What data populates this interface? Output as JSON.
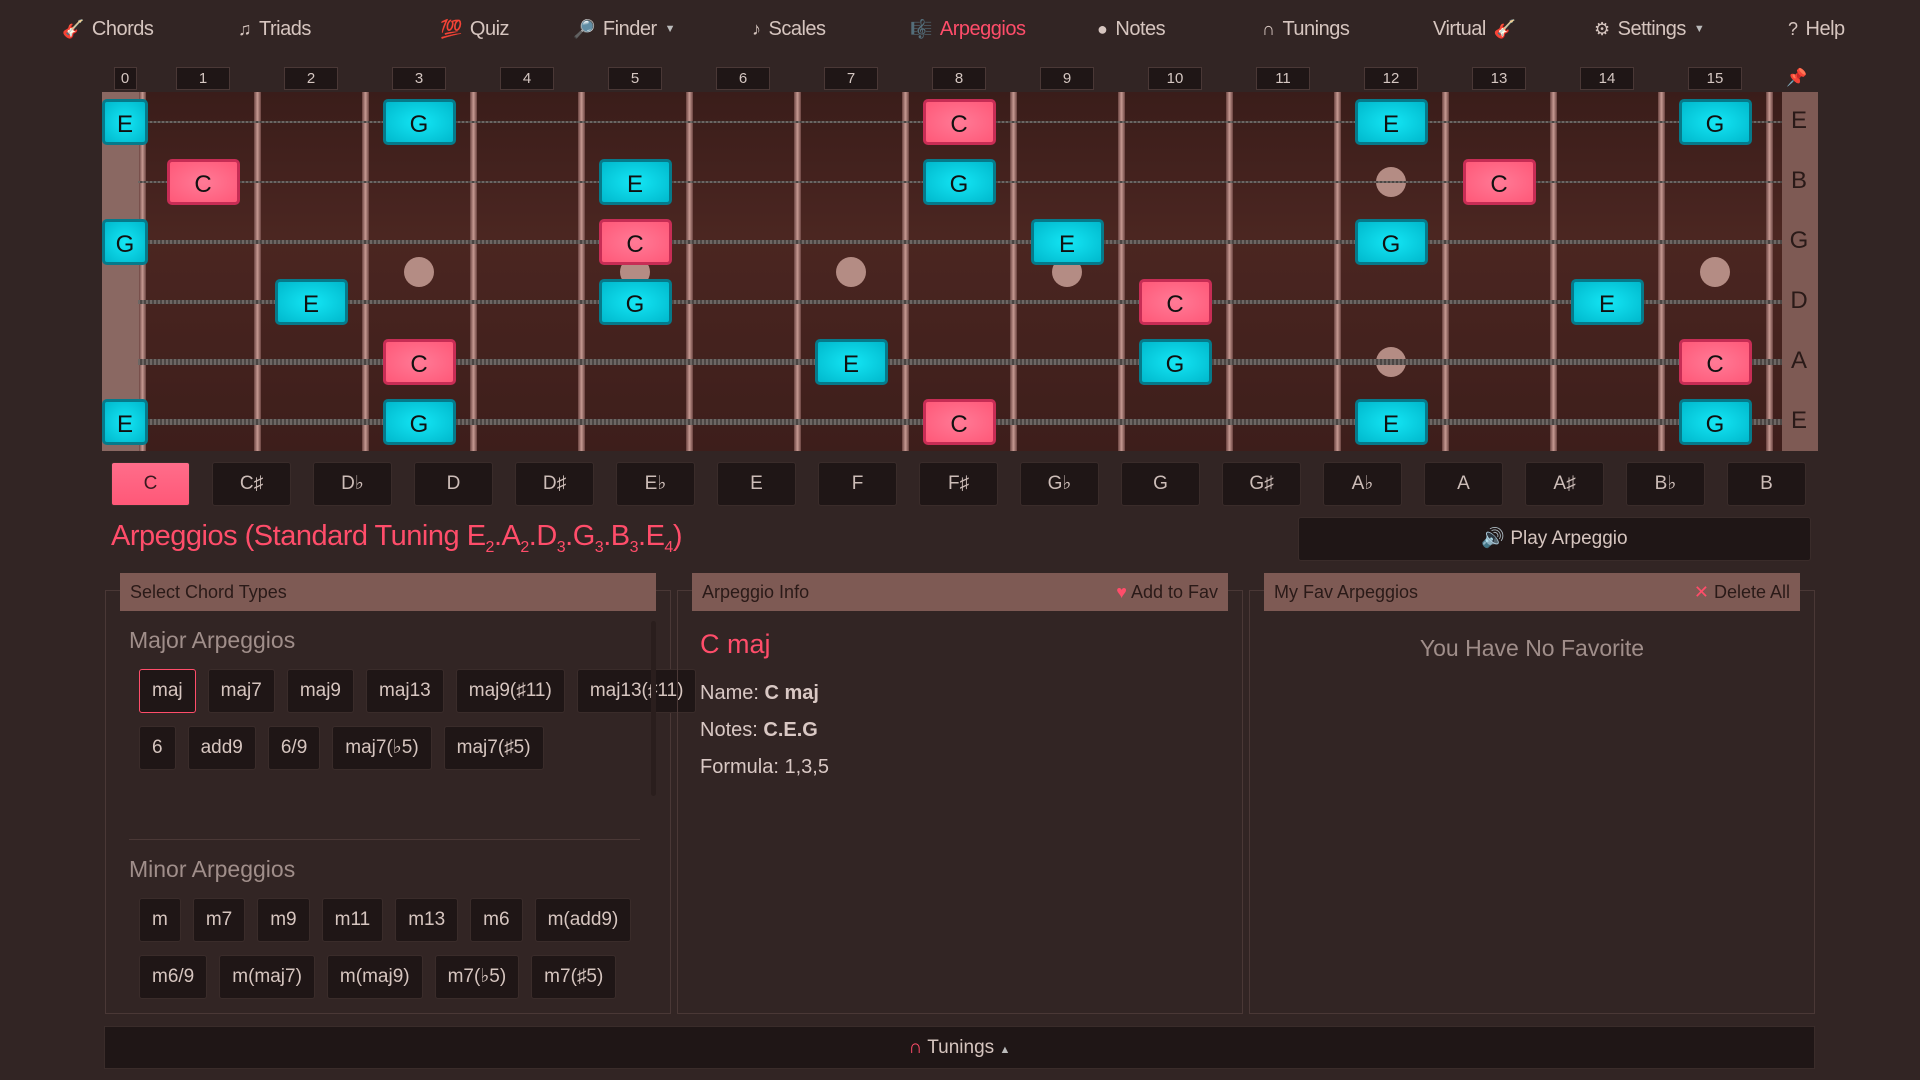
{
  "nav": [
    {
      "label": "Chords",
      "icon": "guitar-icon",
      "glyph": "🎸"
    },
    {
      "label": "Triads",
      "icon": "music-notes-icon",
      "glyph": "♫"
    },
    {
      "label": "Quiz",
      "icon": "hundred-icon",
      "glyph": "💯"
    },
    {
      "label": "Finder",
      "icon": "magnifier-icon",
      "glyph": "🔎",
      "dropdown": true
    },
    {
      "label": "Scales",
      "icon": "music-note-icon",
      "glyph": "♪"
    },
    {
      "label": "Arpeggios",
      "icon": "score-icon",
      "glyph": "🎼",
      "active": true
    },
    {
      "label": "Notes",
      "icon": "purple-circle-icon",
      "glyph": "●"
    },
    {
      "label": "Tunings",
      "icon": "magnet-icon",
      "glyph": "∩"
    },
    {
      "label": "Virtual",
      "icon": "guitar-icon",
      "glyph": "🎸",
      "icon_after": true
    },
    {
      "label": "Settings",
      "icon": "gear-icon",
      "glyph": "⚙",
      "dropdown": true
    },
    {
      "label": "Help",
      "icon": "question-icon",
      "glyph": "?"
    }
  ],
  "fretboard": {
    "fret_numbers": [
      "0",
      "1",
      "2",
      "3",
      "4",
      "5",
      "6",
      "7",
      "8",
      "9",
      "10",
      "11",
      "12",
      "13",
      "14",
      "15"
    ],
    "string_labels": [
      "E",
      "B",
      "G",
      "D",
      "A",
      "E"
    ],
    "pin_icon": "pushpin-icon",
    "inlays": [
      3,
      5,
      7,
      9,
      12,
      15
    ],
    "notes": [
      {
        "string": 0,
        "fret": 0,
        "note": "E"
      },
      {
        "string": 0,
        "fret": 3,
        "note": "G"
      },
      {
        "string": 0,
        "fret": 8,
        "note": "C"
      },
      {
        "string": 0,
        "fret": 12,
        "note": "E"
      },
      {
        "string": 0,
        "fret": 15,
        "note": "G"
      },
      {
        "string": 1,
        "fret": 1,
        "note": "C"
      },
      {
        "string": 1,
        "fret": 5,
        "note": "E"
      },
      {
        "string": 1,
        "fret": 8,
        "note": "G"
      },
      {
        "string": 1,
        "fret": 13,
        "note": "C"
      },
      {
        "string": 2,
        "fret": 0,
        "note": "G"
      },
      {
        "string": 2,
        "fret": 5,
        "note": "C"
      },
      {
        "string": 2,
        "fret": 9,
        "note": "E"
      },
      {
        "string": 2,
        "fret": 12,
        "note": "G"
      },
      {
        "string": 3,
        "fret": 2,
        "note": "E"
      },
      {
        "string": 3,
        "fret": 5,
        "note": "G"
      },
      {
        "string": 3,
        "fret": 10,
        "note": "C"
      },
      {
        "string": 3,
        "fret": 14,
        "note": "E"
      },
      {
        "string": 4,
        "fret": 3,
        "note": "C"
      },
      {
        "string": 4,
        "fret": 7,
        "note": "E"
      },
      {
        "string": 4,
        "fret": 10,
        "note": "G"
      },
      {
        "string": 4,
        "fret": 15,
        "note": "C"
      },
      {
        "string": 5,
        "fret": 0,
        "note": "E"
      },
      {
        "string": 5,
        "fret": 3,
        "note": "G"
      },
      {
        "string": 5,
        "fret": 8,
        "note": "C"
      },
      {
        "string": 5,
        "fret": 12,
        "note": "E"
      },
      {
        "string": 5,
        "fret": 15,
        "note": "G"
      }
    ],
    "root_color": "#ff5878",
    "tone_color": "#00c8dc"
  },
  "keys": [
    "C",
    "C♯",
    "D♭",
    "D",
    "D♯",
    "E♭",
    "E",
    "F",
    "F♯",
    "G♭",
    "G",
    "G♯",
    "A♭",
    "A",
    "A♯",
    "B♭",
    "B"
  ],
  "selected_key": "C",
  "title": {
    "main": "Arpeggios (Standard Tuning ",
    "notes": [
      [
        "E",
        "2"
      ],
      [
        "A",
        "2"
      ],
      [
        "D",
        "3"
      ],
      [
        "G",
        "3"
      ],
      [
        "B",
        "3"
      ],
      [
        "E",
        "4"
      ]
    ],
    "end": ")"
  },
  "play_label": "Play Arpeggio",
  "chord_types": {
    "header": "Select Chord Types",
    "major_title": "Major Arpeggios",
    "major": [
      "maj",
      "maj7",
      "maj9",
      "maj13",
      "maj9(♯11)",
      "maj13(♯11)",
      "6",
      "add9",
      "6/9",
      "maj7(♭5)",
      "maj7(♯5)"
    ],
    "minor_title": "Minor Arpeggios",
    "minor": [
      "m",
      "m7",
      "m9",
      "m11",
      "m13",
      "m6",
      "m(add9)",
      "m6/9",
      "m(maj7)",
      "m(maj9)",
      "m7(♭5)",
      "m7(♯5)"
    ],
    "selected": "maj"
  },
  "info": {
    "header": "Arpeggio Info",
    "add_fav": "Add to Fav",
    "name_heading": "C maj",
    "name_label": "Name:",
    "name": "C maj",
    "notes_label": "Notes:",
    "notes": "C.E.G",
    "formula_label": "Formula:",
    "formula": "1,3,5"
  },
  "favs": {
    "header": "My Fav Arpeggios",
    "delete_all": "Delete All",
    "empty": "You Have No Favorite"
  },
  "footer": {
    "label": "Tunings"
  }
}
